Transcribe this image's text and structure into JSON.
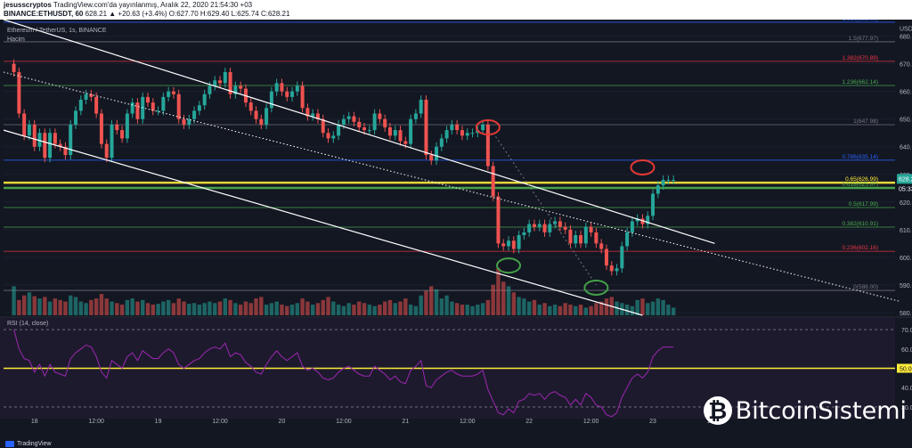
{
  "header": {
    "author": "jesusscryptos",
    "published": "TradingView.com'da yayınlanmış, Aralık 22, 2020 21:54:30 +03",
    "symbol_line": "BINANCE:ETHUSDT, 60",
    "ohlc": "628.21 ▲ +20.63 (+3.4%) O:627.70 H:629.40 L:625.74 C:628.21"
  },
  "legend": {
    "pair": "Ethereum / TetherUS, 1s, BINANCE",
    "volume": "Hacim",
    "rsi": "RSI (14, close)"
  },
  "footer": {
    "tradingview": "TradingView",
    "brand": "BitcoinSistemi"
  },
  "chart_data": {
    "type": "candlestick",
    "currency": "USDT",
    "y_ticks": [
      580,
      590,
      600,
      610,
      620,
      630,
      640,
      650,
      660,
      670,
      680
    ],
    "price_range": [
      579,
      686
    ],
    "last_price": "628.21",
    "countdown": "05:33",
    "x_ticks": [
      "18",
      "12:00",
      "19",
      "12:00",
      "20",
      "12:00",
      "21",
      "12:00",
      "22",
      "12:00",
      "23",
      "12:00"
    ],
    "x_range_hours": [
      0,
      138
    ],
    "fib_levels": [
      {
        "label": "1.618(685.05)",
        "price": 685.05,
        "color": "#2962ff"
      },
      {
        "label": "1.5(677.97)",
        "price": 677.97,
        "color": "#787b86"
      },
      {
        "label": "1.382(670.89)",
        "price": 670.89,
        "color": "#f23645"
      },
      {
        "label": "1.236(662.14)",
        "price": 662.14,
        "color": "#4caf50"
      },
      {
        "label": "1(647.98)",
        "price": 647.98,
        "color": "#787b86"
      },
      {
        "label": "0.786(635.14)",
        "price": 635.14,
        "color": "#2962ff"
      },
      {
        "label": "0.65(626.99)",
        "price": 626.99,
        "color": "#ffeb3b"
      },
      {
        "label": "0.618(625.07)",
        "price": 625.07,
        "color": "#4caf50"
      },
      {
        "label": "0.5(617.99)",
        "price": 617.99,
        "color": "#4caf50"
      },
      {
        "label": "0.382(610.91)",
        "price": 610.91,
        "color": "#4caf50"
      },
      {
        "label": "0.236(602.16)",
        "price": 602.16,
        "color": "#f23645"
      },
      {
        "label": "0(588.00)",
        "price": 588.0,
        "color": "#787b86"
      }
    ],
    "channel_lines": [
      {
        "name": "upper",
        "style": "solid",
        "start": [
          0,
          686
        ],
        "end": [
          138,
          605
        ]
      },
      {
        "name": "lower",
        "style": "solid",
        "start": [
          0,
          646
        ],
        "end": [
          124,
          579
        ]
      },
      {
        "name": "mid",
        "style": "dotted",
        "start": [
          0,
          667
        ],
        "end": [
          174,
          584
        ]
      }
    ],
    "candles_close": [
      667,
      652,
      644,
      648,
      640,
      645,
      636,
      645,
      641,
      640,
      637,
      648,
      653,
      657,
      659,
      658,
      652,
      641,
      636,
      648,
      646,
      643,
      652,
      656,
      650,
      658,
      656,
      653,
      653,
      658,
      660,
      659,
      650,
      648,
      650,
      653,
      655,
      659,
      662,
      664,
      663,
      667,
      659,
      662,
      661,
      656,
      653,
      650,
      648,
      654,
      660,
      663,
      660,
      658,
      660,
      662,
      654,
      651,
      652,
      650,
      645,
      643,
      644,
      648,
      650,
      651,
      649,
      647,
      646,
      646,
      652,
      650,
      647,
      644,
      646,
      642,
      641,
      650,
      652,
      657,
      637,
      635,
      640,
      643,
      646,
      648,
      646,
      644,
      645,
      645,
      646,
      648,
      633,
      622,
      605,
      604,
      606,
      603,
      608,
      609,
      612,
      611,
      612,
      609,
      612,
      613,
      611,
      610,
      605,
      608,
      605,
      611,
      609,
      605,
      603,
      597,
      595,
      596,
      604,
      609,
      613,
      614,
      612,
      615,
      623,
      626,
      628,
      628,
      628
    ],
    "volume": [
      38,
      20,
      26,
      30,
      25,
      22,
      24,
      18,
      22,
      20,
      18,
      26,
      24,
      18,
      16,
      20,
      22,
      28,
      22,
      18,
      16,
      14,
      20,
      22,
      18,
      20,
      16,
      14,
      15,
      18,
      20,
      16,
      22,
      18,
      15,
      16,
      14,
      16,
      18,
      16,
      18,
      22,
      20,
      16,
      14,
      18,
      16,
      22,
      24,
      14,
      16,
      18,
      14,
      12,
      14,
      16,
      22,
      18,
      14,
      16,
      20,
      24,
      18,
      14,
      12,
      16,
      14,
      18,
      16,
      14,
      12,
      14,
      18,
      20,
      16,
      18,
      22,
      14,
      12,
      26,
      32,
      38,
      34,
      22,
      26,
      18,
      16,
      14,
      14,
      12,
      14,
      16,
      20,
      40,
      62,
      44,
      38,
      30,
      24,
      22,
      18,
      20,
      14,
      16,
      12,
      14,
      12,
      16,
      14,
      12,
      14,
      10,
      12,
      16,
      18,
      22,
      24,
      18,
      16,
      14,
      12,
      20,
      22,
      16,
      18,
      22,
      20,
      14,
      10
    ],
    "rsi_ticks": [
      30,
      40,
      50,
      60,
      70
    ],
    "rsi_range": [
      24,
      76
    ],
    "rsi_overbought_line": 70,
    "rsi_oversold_line": 30,
    "rsi_mid_line": 50,
    "rsi_mid_label": "50.00",
    "rsi": [
      70,
      60,
      55,
      54,
      48,
      52,
      46,
      52,
      48,
      47,
      46,
      55,
      58,
      60,
      62,
      61,
      56,
      48,
      45,
      54,
      52,
      50,
      56,
      58,
      54,
      59,
      57,
      55,
      55,
      58,
      60,
      58,
      52,
      50,
      52,
      54,
      55,
      58,
      60,
      61,
      60,
      63,
      56,
      58,
      57,
      53,
      51,
      48,
      47,
      52,
      56,
      59,
      56,
      54,
      56,
      58,
      51,
      49,
      50,
      48,
      45,
      44,
      45,
      48,
      50,
      51,
      49,
      47,
      46,
      46,
      51,
      49,
      47,
      44,
      46,
      43,
      42,
      49,
      51,
      54,
      41,
      40,
      44,
      46,
      48,
      49,
      47,
      46,
      46,
      46,
      47,
      49,
      39,
      33,
      27,
      26,
      29,
      27,
      33,
      34,
      37,
      36,
      37,
      34,
      37,
      38,
      36,
      35,
      31,
      34,
      31,
      37,
      35,
      31,
      30,
      26,
      25,
      27,
      35,
      40,
      45,
      47,
      45,
      48,
      56,
      59,
      61,
      61,
      61
    ],
    "annotations": [
      {
        "type": "circle",
        "color": "#e53935",
        "hour": 94,
        "price": 647
      },
      {
        "type": "circle",
        "color": "#e53935",
        "hour": 124,
        "price": 632.5
      },
      {
        "type": "circle",
        "color": "#43a047",
        "hour": 98,
        "price": 597
      },
      {
        "type": "circle",
        "color": "#43a047",
        "hour": 115,
        "price": 589
      }
    ]
  }
}
